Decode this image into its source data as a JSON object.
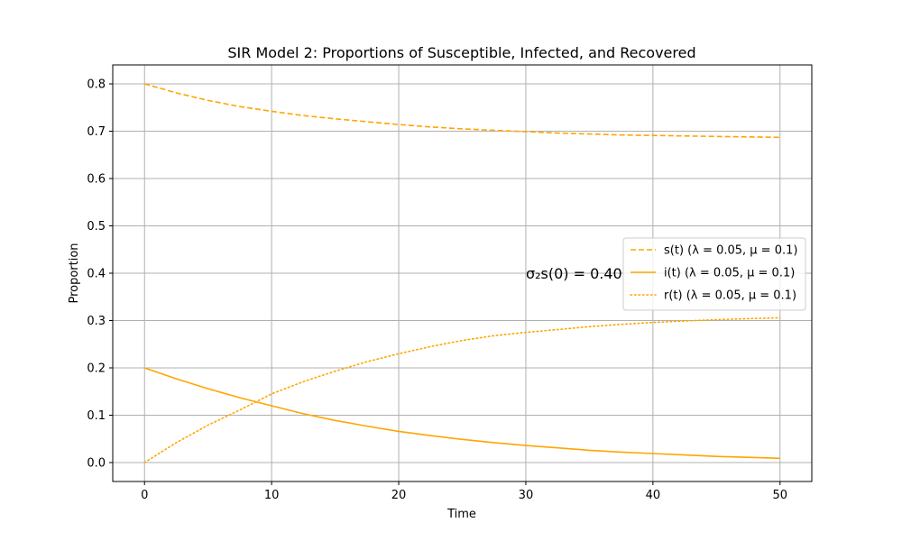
{
  "chart_data": {
    "type": "line",
    "title": "SIR Model 2: Proportions of Susceptible, Infected, and Recovered",
    "xlabel": "Time",
    "ylabel": "Proportion",
    "xlim": [
      -2.5,
      52.5
    ],
    "ylim": [
      -0.04,
      0.84
    ],
    "xticks": [
      0,
      10,
      20,
      30,
      40,
      50
    ],
    "yticks": [
      0.0,
      0.1,
      0.2,
      0.3,
      0.4,
      0.5,
      0.6,
      0.7,
      0.8
    ],
    "xtick_labels": [
      "0",
      "10",
      "20",
      "30",
      "40",
      "50"
    ],
    "ytick_labels": [
      "0.0",
      "0.1",
      "0.2",
      "0.3",
      "0.4",
      "0.5",
      "0.6",
      "0.7",
      "0.8"
    ],
    "grid": true,
    "legend_position": "center-right",
    "annotation": {
      "text": "σ₂s(0) = 0.40",
      "x": 30,
      "y": 0.4
    },
    "x": [
      0,
      2.5,
      5,
      7.5,
      10,
      12.5,
      15,
      17.5,
      20,
      22.5,
      25,
      27.5,
      30,
      32.5,
      35,
      37.5,
      40,
      42.5,
      45,
      47.5,
      50
    ],
    "series": [
      {
        "name": "s(t) (λ = 0.05, μ = 0.1)",
        "style": "dashed",
        "color": "#ffa500",
        "values": [
          0.8,
          0.781,
          0.765,
          0.752,
          0.742,
          0.733,
          0.726,
          0.72,
          0.714,
          0.709,
          0.705,
          0.702,
          0.699,
          0.696,
          0.694,
          0.692,
          0.691,
          0.69,
          0.689,
          0.688,
          0.687
        ]
      },
      {
        "name": "i(t) (λ = 0.05, μ = 0.1)",
        "style": "solid",
        "color": "#ffa500",
        "values": [
          0.2,
          0.177,
          0.156,
          0.137,
          0.12,
          0.103,
          0.089,
          0.077,
          0.066,
          0.057,
          0.049,
          0.042,
          0.036,
          0.031,
          0.026,
          0.022,
          0.019,
          0.016,
          0.013,
          0.011,
          0.009
        ]
      },
      {
        "name": "r(t) (λ = 0.05, μ = 0.1)",
        "style": "dotted",
        "color": "#ffa500",
        "values": [
          0.0,
          0.042,
          0.079,
          0.111,
          0.145,
          0.171,
          0.193,
          0.213,
          0.23,
          0.245,
          0.258,
          0.268,
          0.275,
          0.281,
          0.287,
          0.292,
          0.296,
          0.299,
          0.302,
          0.304,
          0.306
        ]
      }
    ]
  }
}
